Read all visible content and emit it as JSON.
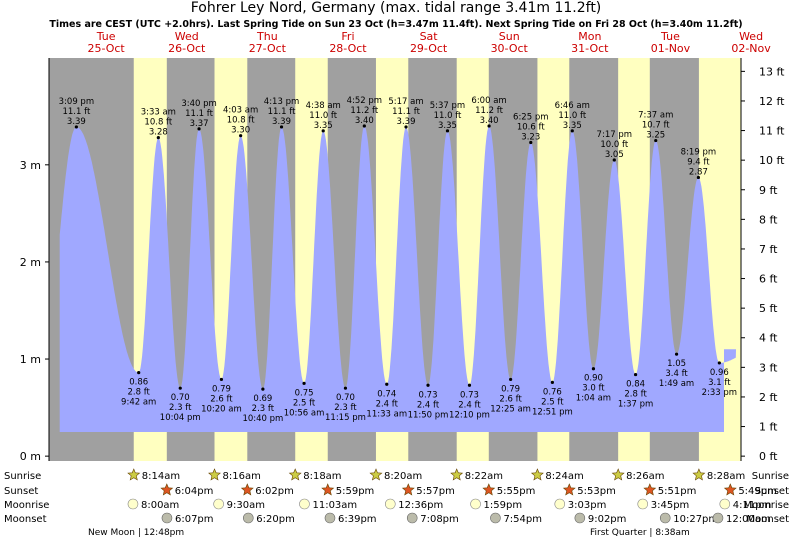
{
  "title": "Fohrer Ley Nord, Germany (max. tidal range 3.41m 11.2ft)",
  "subtitle": "Times are CEST (UTC +2.0hrs). Last Spring Tide on Sun 23 Oct (h=3.47m 11.4ft). Next Spring Tide on Fri 28 Oct (h=3.40m 11.2ft)",
  "chart_data": {
    "type": "area",
    "title": "Fohrer Ley Nord, Germany (max. tidal range 3.41m 11.2ft)",
    "x_unit": "hours since 00:00 Tue 25-Oct",
    "xlim": [
      -17,
      189
    ],
    "ylim_m": [
      -0.05,
      4.1
    ],
    "left_axis": {
      "unit": "m",
      "ticks": [
        0,
        1,
        2,
        3
      ],
      "labels": [
        "0 m",
        "1 m",
        "2 m",
        "3 m"
      ]
    },
    "right_axis": {
      "unit": "ft",
      "ticks": [
        0,
        1,
        2,
        3,
        4,
        5,
        6,
        7,
        8,
        9,
        10,
        11,
        12,
        13
      ],
      "labels": [
        "0 ft",
        "1 ft",
        "2 ft",
        "3 ft",
        "4 ft",
        "5 ft",
        "6 ft",
        "7 ft",
        "8 ft",
        "9 ft",
        "10 ft",
        "11 ft",
        "12 ft",
        "13 ft"
      ]
    },
    "days": [
      {
        "dow": "Tue",
        "date": "25-Oct",
        "center_h": 0
      },
      {
        "dow": "Wed",
        "date": "26-Oct",
        "center_h": 24
      },
      {
        "dow": "Thu",
        "date": "27-Oct",
        "center_h": 48
      },
      {
        "dow": "Fri",
        "date": "28-Oct",
        "center_h": 72
      },
      {
        "dow": "Sat",
        "date": "29-Oct",
        "center_h": 96
      },
      {
        "dow": "Sun",
        "date": "30-Oct",
        "center_h": 120
      },
      {
        "dow": "Mon",
        "date": "31-Oct",
        "center_h": 144
      },
      {
        "dow": "Tue",
        "date": "01-Nov",
        "center_h": 168
      },
      {
        "dow": "Wed",
        "date": "02-Nov",
        "center_h": 192
      }
    ],
    "daylight": [
      {
        "rise": 8.23,
        "set": 18.07
      },
      {
        "rise": 32.27,
        "set": 42.03
      },
      {
        "rise": 56.3,
        "set": 65.98
      },
      {
        "rise": 80.33,
        "set": 89.95
      },
      {
        "rise": 104.37,
        "set": 113.92
      },
      {
        "rise": 128.4,
        "set": 137.88
      },
      {
        "rise": 152.43,
        "set": 161.85
      },
      {
        "rise": 176.47,
        "set": 185.82
      }
    ],
    "tides": [
      {
        "type": "high",
        "t": -8.85,
        "m": 3.39,
        "time": "3:09 pm",
        "ft": "11.1 ft",
        "height": "3.39"
      },
      {
        "type": "low",
        "t": 9.7,
        "m": 0.86,
        "time": "9:42 am",
        "ft": "2.8 ft",
        "height": "0.86"
      },
      {
        "type": "low",
        "t": 22.07,
        "m": 0.7,
        "time": "10:04 pm",
        "ft": "2.3 ft",
        "height": "0.70"
      },
      {
        "type": "high",
        "t": 15.55,
        "m": 3.28,
        "time": "3:33 am",
        "ft": "10.8 ft",
        "height": "3.28"
      },
      {
        "type": "high",
        "t": 27.67,
        "m": 3.37,
        "time": "3:40 pm",
        "ft": "11.1 ft",
        "height": "3.37"
      },
      {
        "type": "low",
        "t": 34.33,
        "m": 0.79,
        "time": "10:20 am",
        "ft": "2.6 ft",
        "height": "0.79"
      },
      {
        "type": "low",
        "t": 46.67,
        "m": 0.69,
        "time": "10:40 pm",
        "ft": "2.3 ft",
        "height": "0.69"
      },
      {
        "type": "high",
        "t": 40.05,
        "m": 3.3,
        "time": "4:03 am",
        "ft": "10.8 ft",
        "height": "3.30"
      },
      {
        "type": "high",
        "t": 52.22,
        "m": 3.39,
        "time": "4:13 pm",
        "ft": "11.1 ft",
        "height": "3.39"
      },
      {
        "type": "low",
        "t": 58.93,
        "m": 0.75,
        "time": "10:56 am",
        "ft": "2.5 ft",
        "height": "0.75"
      },
      {
        "type": "low",
        "t": 71.25,
        "m": 0.7,
        "time": "11:15 pm",
        "ft": "2.3 ft",
        "height": "0.70"
      },
      {
        "type": "high",
        "t": 64.63,
        "m": 3.35,
        "time": "4:38 am",
        "ft": "11.0 ft",
        "height": "3.35"
      },
      {
        "type": "high",
        "t": 76.87,
        "m": 3.4,
        "time": "4:52 pm",
        "ft": "11.2 ft",
        "height": "3.40"
      },
      {
        "type": "low",
        "t": 83.55,
        "m": 0.74,
        "time": "11:33 am",
        "ft": "2.4 ft",
        "height": "0.74"
      },
      {
        "type": "low",
        "t": 95.83,
        "m": 0.73,
        "time": "11:50 pm",
        "ft": "2.4 ft",
        "height": "0.73"
      },
      {
        "type": "high",
        "t": 89.28,
        "m": 3.39,
        "time": "5:17 am",
        "ft": "11.1 ft",
        "height": "3.39"
      },
      {
        "type": "high",
        "t": 101.62,
        "m": 3.35,
        "time": "5:37 pm",
        "ft": "11.0 ft",
        "height": "3.35"
      },
      {
        "type": "low",
        "t": 108.17,
        "m": 0.73,
        "time": "12:10 pm",
        "ft": "2.4 ft",
        "height": "0.73"
      },
      {
        "type": "low",
        "t": 120.42,
        "m": 0.79,
        "time": "12:25 am",
        "ft": "2.6 ft",
        "height": "0.79"
      },
      {
        "type": "high",
        "t": 114.0,
        "m": 3.4,
        "time": "6:00 am",
        "ft": "11.2 ft",
        "height": "3.40"
      },
      {
        "type": "high",
        "t": 126.42,
        "m": 3.23,
        "time": "6:25 pm",
        "ft": "10.6 ft",
        "height": "3.23"
      },
      {
        "type": "low",
        "t": 132.85,
        "m": 0.76,
        "time": "12:51 pm",
        "ft": "2.5 ft",
        "height": "0.76"
      },
      {
        "type": "low",
        "t": 145.07,
        "m": 0.9,
        "time": "1:04 am",
        "ft": "3.0 ft",
        "height": "0.90"
      },
      {
        "type": "high",
        "t": 138.77,
        "m": 3.35,
        "time": "6:46 am",
        "ft": "11.0 ft",
        "height": "3.35"
      },
      {
        "type": "high",
        "t": 151.28,
        "m": 3.05,
        "time": "7:17 pm",
        "ft": "10.0 ft",
        "height": "3.05"
      },
      {
        "type": "low",
        "t": 157.62,
        "m": 0.84,
        "time": "1:37 pm",
        "ft": "2.8 ft",
        "height": "0.84"
      },
      {
        "type": "low",
        "t": 169.82,
        "m": 1.05,
        "time": "1:49 am",
        "ft": "3.4 ft",
        "height": "1.05"
      },
      {
        "type": "high",
        "t": 163.62,
        "m": 3.25,
        "time": "7:37 am",
        "ft": "10.7 ft",
        "height": "3.25"
      },
      {
        "type": "high",
        "t": 176.32,
        "m": 2.87,
        "time": "8:19 pm",
        "ft": "9.4 ft",
        "height": "2.87"
      },
      {
        "type": "low",
        "t": 182.55,
        "m": 0.96,
        "time": "2:33 pm",
        "ft": "3.1 ft",
        "height": "0.96"
      }
    ]
  },
  "rows": {
    "sunrise_label": "Sunrise",
    "sunset_label": "Sunset",
    "moonrise_label": "Moonrise",
    "moonset_label": "Moonset",
    "sunrise": [
      "8:14am",
      "8:16am",
      "8:18am",
      "8:20am",
      "8:22am",
      "8:24am",
      "8:26am",
      "8:28am"
    ],
    "sunset": [
      "6:04pm",
      "6:02pm",
      "5:59pm",
      "5:57pm",
      "5:55pm",
      "5:53pm",
      "5:51pm",
      "5:49pm"
    ],
    "moonrise": [
      "8:00am",
      "9:30am",
      "11:03am",
      "12:36pm",
      "1:59pm",
      "3:03pm",
      "3:45pm",
      "4:11pm"
    ],
    "moonset": [
      "6:07pm",
      "6:20pm",
      "6:39pm",
      "7:08pm",
      "7:54pm",
      "9:02pm",
      "10:27pm",
      "12:00am"
    ],
    "moonrise_h": [
      8.0,
      33.5,
      59.05,
      84.6,
      109.98,
      135.05,
      159.75,
      184.18
    ],
    "moonset_h": [
      18.12,
      42.33,
      66.65,
      91.13,
      115.9,
      141.03,
      166.45,
      192.0
    ]
  },
  "moon_phases": {
    "new_moon": "New Moon | 12:48pm",
    "first_quarter": "First Quarter | 8:38am"
  },
  "colors": {
    "night": "#a0a0a0",
    "day": "#ffffc0",
    "water": "#a0a8ff",
    "day_label": "#cc0000",
    "sun_star": "#cccc44",
    "sunset_star": "#dd5522",
    "moon_disc": "#ffffcc",
    "moonset_disc": "#bbbbaa"
  }
}
